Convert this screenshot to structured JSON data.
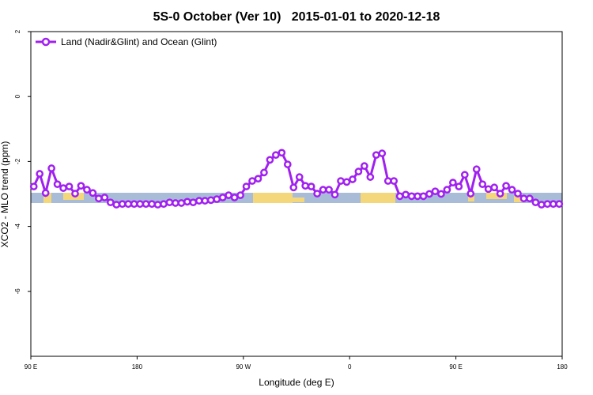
{
  "chart_data": {
    "type": "line",
    "title": "5S-0 October (Ver 10)   2015-01-01 to 2020-12-18",
    "x_label": "Longitude (deg E)",
    "y_label": "XCO2 - MLO trend (ppm)",
    "xlim": [
      90,
      540
    ],
    "ylim": [
      -8,
      2
    ],
    "xticks": [
      {
        "value": 90,
        "label": "90 E"
      },
      180,
      {
        "value": 270,
        "label": "90 W"
      },
      {
        "value": 360,
        "label": "0"
      },
      {
        "value": 450,
        "label": "90 E"
      },
      {
        "value": 540,
        "label": "180"
      }
    ],
    "yticks": [
      2,
      0,
      -2,
      -4,
      -6
    ],
    "legend_position": "top-left",
    "x": [
      92.5,
      97.5,
      102.5,
      107.5,
      112.5,
      117.5,
      122.5,
      127.5,
      132.5,
      137.5,
      142.5,
      147.5,
      152.5,
      157.5,
      162.5,
      167.5,
      172.5,
      177.5,
      182.5,
      187.5,
      192.5,
      197.5,
      202.5,
      207.5,
      212.5,
      217.5,
      222.5,
      227.5,
      232.5,
      237.5,
      242.5,
      247.5,
      252.5,
      257.5,
      262.5,
      267.5,
      272.5,
      277.5,
      282.5,
      287.5,
      292.5,
      297.5,
      302.5,
      307.5,
      312.5,
      317.5,
      322.5,
      327.5,
      332.5,
      337.5,
      342.5,
      347.5,
      352.5,
      357.5,
      362.5,
      367.5,
      372.5,
      377.5,
      382.5,
      387.5,
      392.5,
      397.5,
      402.5,
      407.5,
      412.5,
      417.5,
      422.5,
      427.5,
      432.5,
      437.5,
      442.5,
      447.5,
      452.5,
      457.5,
      462.5,
      467.5,
      472.5,
      477.5,
      482.5,
      487.5,
      492.5,
      497.5,
      502.5,
      507.5,
      512.5,
      517.5,
      522.5,
      527.5,
      532.5,
      537.5
    ],
    "series": [
      {
        "name": "Land (Nadir&Glint) and Ocean (Glint)",
        "color": "#a020f0",
        "values": [
          -2.77,
          -2.38,
          -2.97,
          -2.21,
          -2.7,
          -2.82,
          -2.77,
          -2.99,
          -2.75,
          -2.87,
          -2.97,
          -3.14,
          -3.11,
          -3.26,
          -3.33,
          -3.31,
          -3.31,
          -3.31,
          -3.31,
          -3.31,
          -3.31,
          -3.33,
          -3.31,
          -3.26,
          -3.28,
          -3.28,
          -3.24,
          -3.26,
          -3.21,
          -3.21,
          -3.19,
          -3.16,
          -3.11,
          -3.04,
          -3.11,
          -3.04,
          -2.77,
          -2.6,
          -2.53,
          -2.34,
          -1.95,
          -1.8,
          -1.73,
          -2.09,
          -2.8,
          -2.48,
          -2.75,
          -2.77,
          -2.99,
          -2.87,
          -2.87,
          -3.02,
          -2.6,
          -2.63,
          -2.55,
          -2.31,
          -2.14,
          -2.48,
          -1.8,
          -1.75,
          -2.6,
          -2.6,
          -3.07,
          -3.02,
          -3.07,
          -3.07,
          -3.07,
          -3.0,
          -2.92,
          -3.0,
          -2.87,
          -2.65,
          -2.77,
          -2.41,
          -2.99,
          -2.24,
          -2.7,
          -2.85,
          -2.8,
          -2.99,
          -2.75,
          -2.87,
          -2.99,
          -3.14,
          -3.14,
          -3.26,
          -3.33,
          -3.31,
          -3.31,
          -3.31
        ]
      }
    ]
  }
}
